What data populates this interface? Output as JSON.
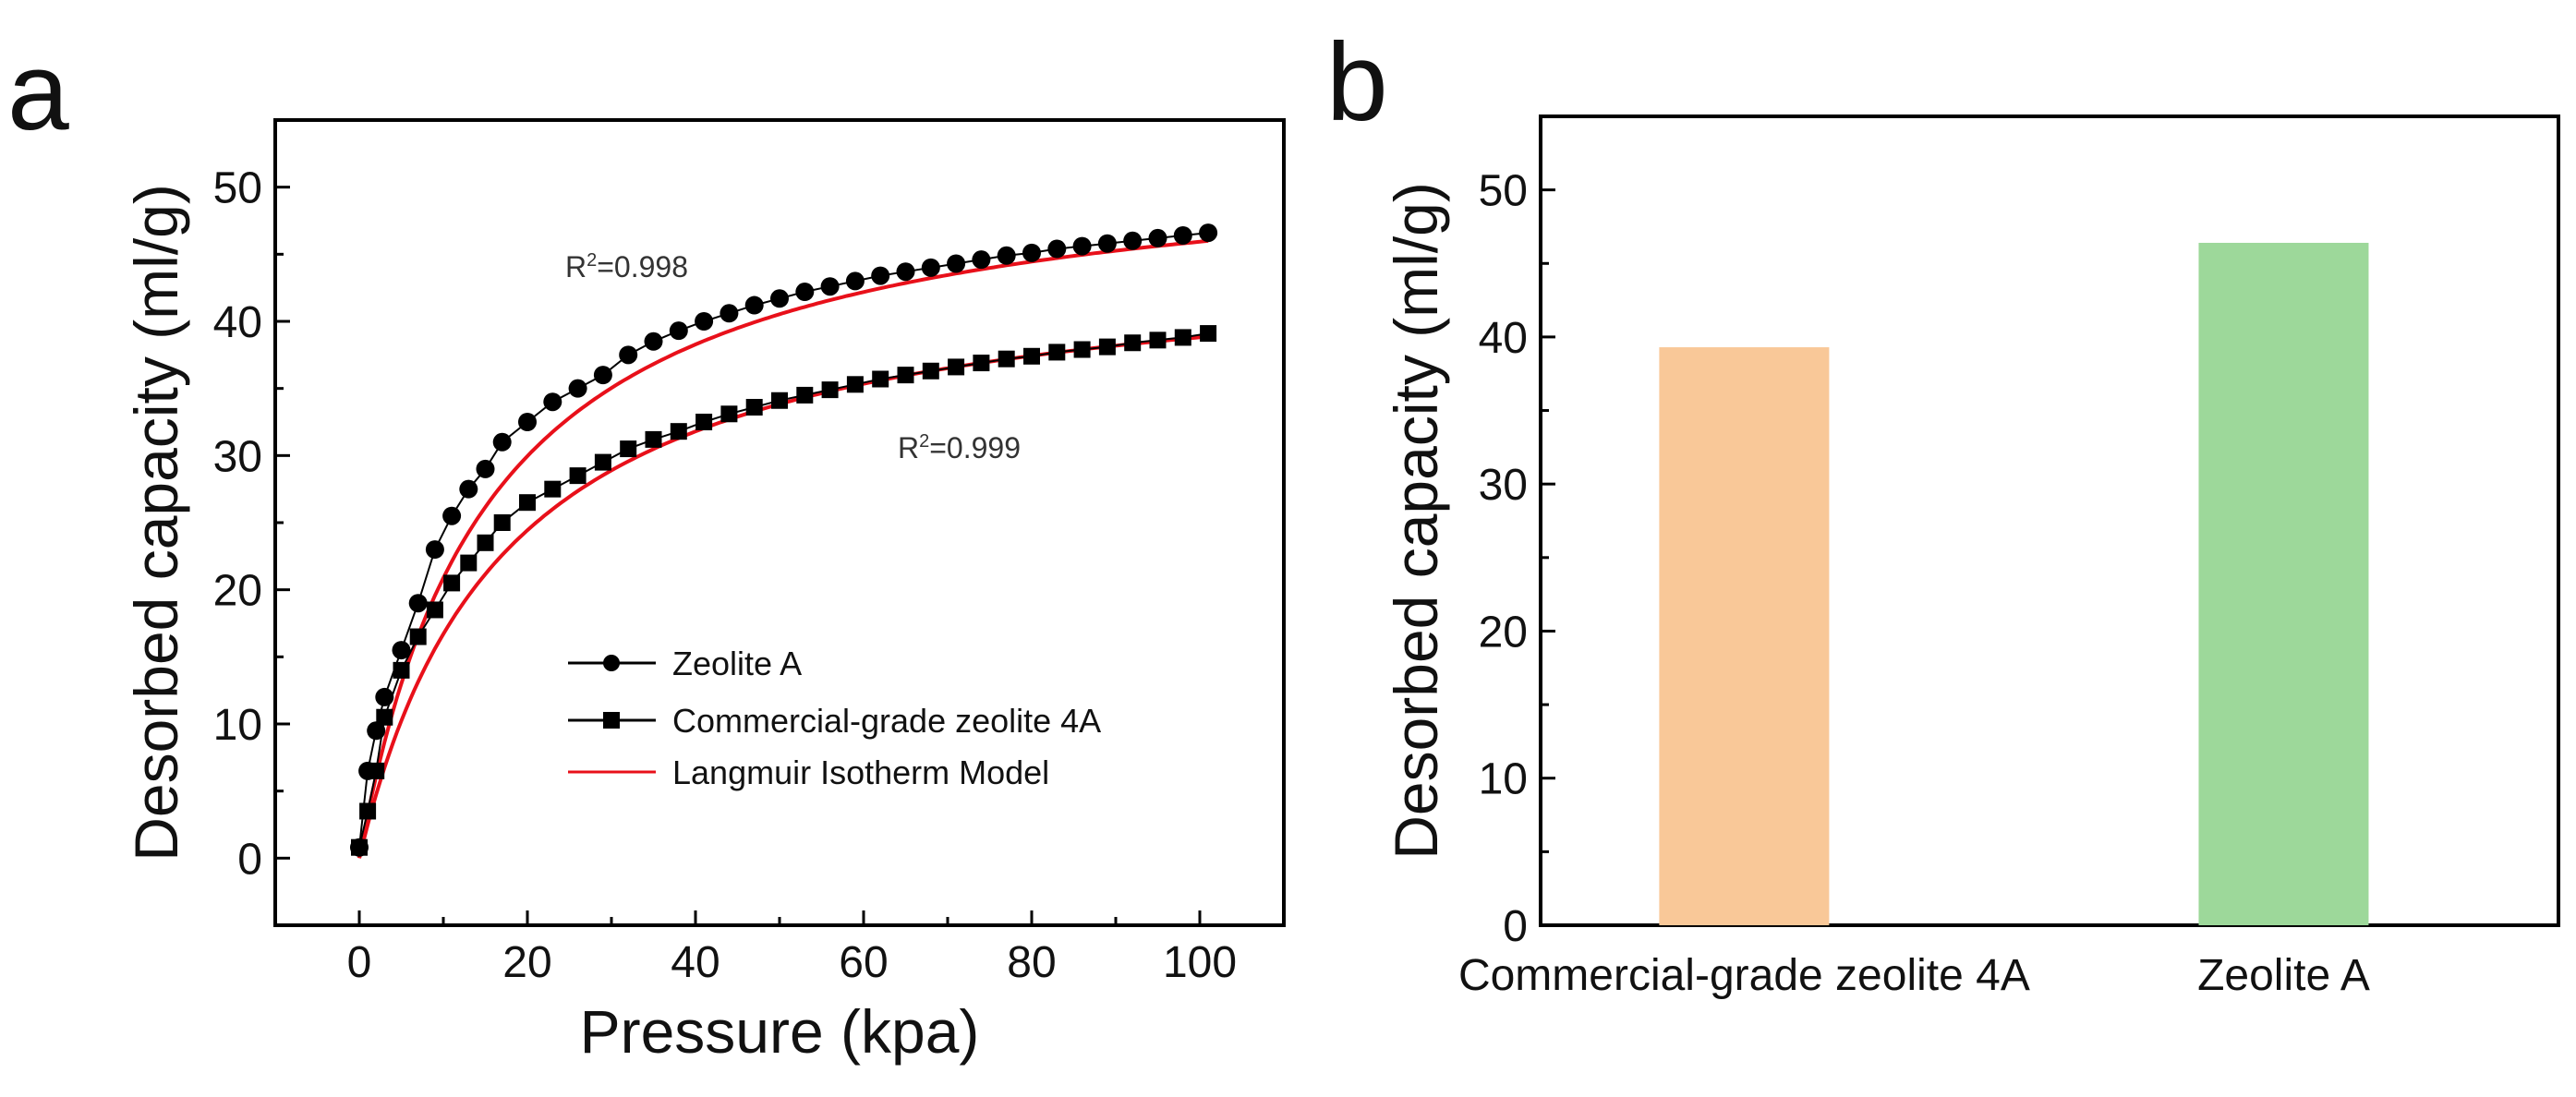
{
  "chart_data": [
    {
      "panel": "a",
      "type": "scatter",
      "xlabel": "Pressure (kpa)",
      "ylabel": "Desorbed capacity (ml/g)",
      "xlim": [
        -10,
        110
      ],
      "ylim": [
        -5,
        55
      ],
      "xticks": [
        0,
        20,
        40,
        60,
        80,
        100
      ],
      "yticks": [
        0,
        10,
        20,
        30,
        40,
        50
      ],
      "legend_position": "lower-right",
      "series": [
        {
          "name": "Zeolite A",
          "marker": "circle",
          "x": [
            0,
            1,
            2,
            3,
            5,
            7,
            9,
            11,
            13,
            15,
            17,
            20,
            23,
            26,
            29,
            32,
            35,
            38,
            41,
            44,
            47,
            50,
            53,
            56,
            59,
            62,
            65,
            68,
            71,
            74,
            77,
            80,
            83,
            86,
            89,
            92,
            95,
            98,
            101
          ],
          "y": [
            0.8,
            6.5,
            9.5,
            12.0,
            15.5,
            19.0,
            23.0,
            25.5,
            27.5,
            29.0,
            31.0,
            32.5,
            34.0,
            35.0,
            36.0,
            37.5,
            38.5,
            39.3,
            40.0,
            40.6,
            41.2,
            41.7,
            42.2,
            42.6,
            43.0,
            43.4,
            43.7,
            44.0,
            44.3,
            44.6,
            44.9,
            45.1,
            45.4,
            45.6,
            45.8,
            46.0,
            46.2,
            46.4,
            46.6
          ]
        },
        {
          "name": "Commercial-grade zeolite 4A",
          "marker": "square",
          "x": [
            0,
            1,
            2,
            3,
            5,
            7,
            9,
            11,
            13,
            15,
            17,
            20,
            23,
            26,
            29,
            32,
            35,
            38,
            41,
            44,
            47,
            50,
            53,
            56,
            59,
            62,
            65,
            68,
            71,
            74,
            77,
            80,
            83,
            86,
            89,
            92,
            95,
            98,
            101
          ],
          "y": [
            0.8,
            3.5,
            6.5,
            10.5,
            14.0,
            16.5,
            18.5,
            20.5,
            22.0,
            23.5,
            25.0,
            26.5,
            27.5,
            28.5,
            29.5,
            30.5,
            31.2,
            31.8,
            32.5,
            33.1,
            33.6,
            34.1,
            34.5,
            34.9,
            35.3,
            35.7,
            36.0,
            36.3,
            36.6,
            36.9,
            37.2,
            37.4,
            37.7,
            37.9,
            38.1,
            38.4,
            38.6,
            38.8,
            39.1
          ]
        },
        {
          "name": "Langmuir Isotherm Model",
          "marker": "none",
          "color": "#e8101a",
          "fits": [
            {
              "for": "Zeolite A",
              "qmax": 53.0,
              "K": 0.065
            },
            {
              "for": "Commercial-grade zeolite 4A",
              "qmax": 45.5,
              "K": 0.058
            }
          ]
        }
      ],
      "annotations": [
        {
          "base": "R",
          "sup": "2",
          "text": "=0.998",
          "for": "Zeolite A"
        },
        {
          "base": "R",
          "sup": "2",
          "text": "=0.999",
          "for": "Commercial-grade zeolite 4A"
        }
      ]
    },
    {
      "panel": "b",
      "type": "bar",
      "ylabel": "Desorbed capacity (ml/g)",
      "ylim": [
        0,
        55
      ],
      "yticks": [
        0,
        10,
        20,
        30,
        40,
        50
      ],
      "categories": [
        "Commercial-grade zeolite 4A",
        "Zeolite A"
      ],
      "values": [
        39.3,
        46.4
      ],
      "colors": [
        "#f9c898",
        "#9dd89a"
      ]
    }
  ]
}
